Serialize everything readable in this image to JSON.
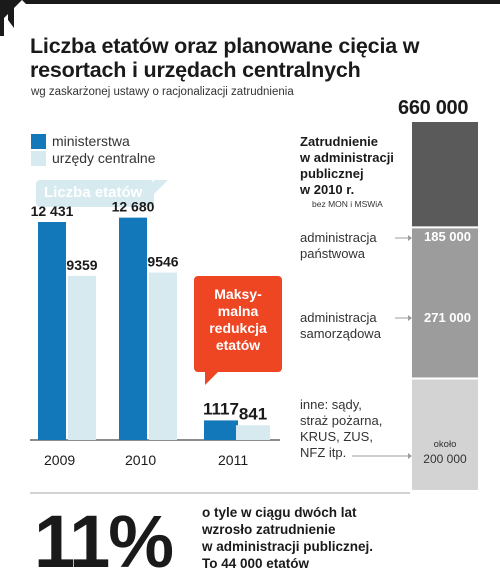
{
  "title": "Liczba etatów oraz planowane cięcia w resortach i urzędach centralnych",
  "subtitle": "wg zaskarżonej ustawy o racjonalizacji zatrudnienia",
  "chart_data": [
    {
      "type": "bar",
      "categories": [
        "2009",
        "2010",
        "2011"
      ],
      "series": [
        {
          "name": "ministerstwa",
          "values": [
            12431,
            12680,
            1117
          ],
          "labels": [
            "12 431",
            "12 680",
            "1117"
          ],
          "color": "#1378ba"
        },
        {
          "name": "urzędy centralne",
          "values": [
            9359,
            9546,
            841
          ],
          "labels": [
            "9359",
            "9546",
            "841"
          ],
          "color": "#d6eaf0"
        }
      ],
      "title": "Liczba etatów",
      "ylim": [
        0,
        13000
      ],
      "grid": false,
      "legend": "top-left",
      "annotation": "Maksy-\nmalna\nredukcja\netatów"
    },
    {
      "type": "bar",
      "stacked": true,
      "title": "Zatrudnienie\nw administracji\npublicznej\nw 2010 r.",
      "note": "bez MON i MSWiA",
      "total": 660000,
      "total_label": "660 000",
      "segments": [
        {
          "name": "administracja\npaństwowa",
          "value": 185000,
          "label": "185 000",
          "color": "#5a5a5a"
        },
        {
          "name": "administracja\nsamorządowa",
          "value": 271000,
          "label": "271 000",
          "color": "#9c9c9c"
        },
        {
          "name": "inne: sądy,\nstraż pożarna,\nKRUS, ZUS,\nNFZ itp.",
          "value": 200000,
          "label": "200 000",
          "qualifier": "około",
          "color": "#d3d3d3"
        }
      ]
    }
  ],
  "summary": {
    "percent": "11%",
    "text": "o tyle w ciągu dwóch lat\nwzrosło zatrudnienie\nw administracji publicznej.\nTo 44 000 etatów"
  },
  "colors": {
    "ministerstwa": "#1378ba",
    "urzedy": "#d6eaf0",
    "callout": "#ee4523",
    "accent": "#1a1a1a"
  }
}
